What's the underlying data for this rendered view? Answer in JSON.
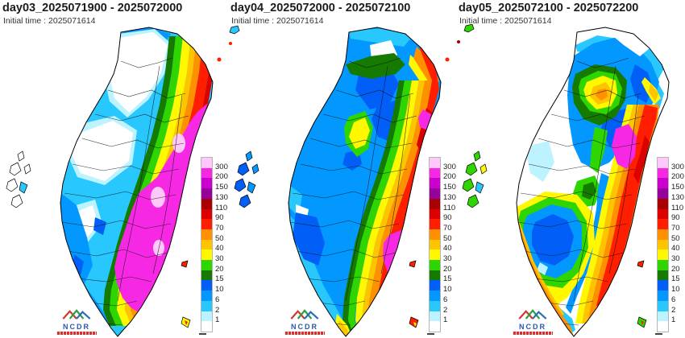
{
  "panels": [
    {
      "title": "day03_2025071900 - 2025072000",
      "initial_time": "Initial time : 2025071614"
    },
    {
      "title": "day04_2025072000 - 2025072100",
      "initial_time": "Initial time : 2025071614"
    },
    {
      "title": "day05_2025072100 - 2025072200",
      "initial_time": "Initial time : 2025071614"
    }
  ],
  "colorbar": {
    "boundary_labels": [
      "300",
      "200",
      "150",
      "130",
      "110",
      "90",
      "70",
      "50",
      "40",
      "30",
      "20",
      "15",
      "10",
      "6",
      "2",
      "1"
    ],
    "segments": [
      {
        "range": "above-300",
        "color": "#FFC8FA"
      },
      {
        "range": "200-300",
        "color": "#F628E4"
      },
      {
        "range": "150-200",
        "color": "#CC00CC"
      },
      {
        "range": "130-150",
        "color": "#96009B"
      },
      {
        "range": "110-130",
        "color": "#A80000"
      },
      {
        "range": "90-110",
        "color": "#DD0000"
      },
      {
        "range": "70-90",
        "color": "#FF1F00"
      },
      {
        "range": "50-70",
        "color": "#FF9000"
      },
      {
        "range": "40-50",
        "color": "#FFC400"
      },
      {
        "range": "30-40",
        "color": "#FFF800"
      },
      {
        "range": "20-30",
        "color": "#2FD500"
      },
      {
        "range": "15-20",
        "color": "#147A00"
      },
      {
        "range": "10-15",
        "color": "#015FF8"
      },
      {
        "range": "6-10",
        "color": "#0398FF"
      },
      {
        "range": "2-6",
        "color": "#28C8FF"
      },
      {
        "range": "1-2",
        "color": "#BDF3FF"
      },
      {
        "range": "below-1",
        "color": "#FFFFFF"
      }
    ]
  },
  "logo": {
    "acronym": "NCDR"
  }
}
